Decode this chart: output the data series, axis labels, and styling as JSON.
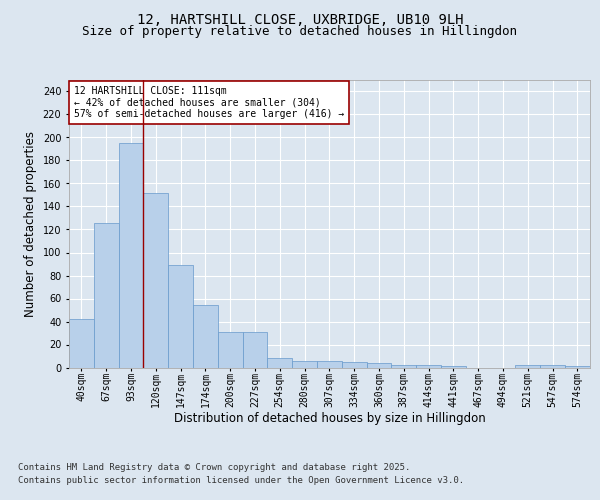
{
  "title_line1": "12, HARTSHILL CLOSE, UXBRIDGE, UB10 9LH",
  "title_line2": "Size of property relative to detached houses in Hillingdon",
  "xlabel": "Distribution of detached houses by size in Hillingdon",
  "ylabel": "Number of detached properties",
  "categories": [
    "40sqm",
    "67sqm",
    "93sqm",
    "120sqm",
    "147sqm",
    "174sqm",
    "200sqm",
    "227sqm",
    "254sqm",
    "280sqm",
    "307sqm",
    "334sqm",
    "360sqm",
    "387sqm",
    "414sqm",
    "441sqm",
    "467sqm",
    "494sqm",
    "521sqm",
    "547sqm",
    "574sqm"
  ],
  "values": [
    42,
    126,
    195,
    152,
    89,
    54,
    31,
    31,
    8,
    6,
    6,
    5,
    4,
    2,
    2,
    1,
    0,
    0,
    2,
    2,
    1
  ],
  "bar_color": "#b8d0ea",
  "bar_edge_color": "#6699cc",
  "vline_x": 2.5,
  "vline_color": "#990000",
  "annotation_text": "12 HARTSHILL CLOSE: 111sqm\n← 42% of detached houses are smaller (304)\n57% of semi-detached houses are larger (416) →",
  "annotation_box_color": "white",
  "annotation_box_edge": "#990000",
  "ylim": [
    0,
    250
  ],
  "yticks": [
    0,
    20,
    40,
    60,
    80,
    100,
    120,
    140,
    160,
    180,
    200,
    220,
    240
  ],
  "background_color": "#dce6f0",
  "plot_bg_color": "#dce6f0",
  "grid_color": "white",
  "footer_line1": "Contains HM Land Registry data © Crown copyright and database right 2025.",
  "footer_line2": "Contains public sector information licensed under the Open Government Licence v3.0.",
  "title_fontsize": 10,
  "subtitle_fontsize": 9,
  "tick_fontsize": 7,
  "label_fontsize": 8.5,
  "footer_fontsize": 6.5
}
